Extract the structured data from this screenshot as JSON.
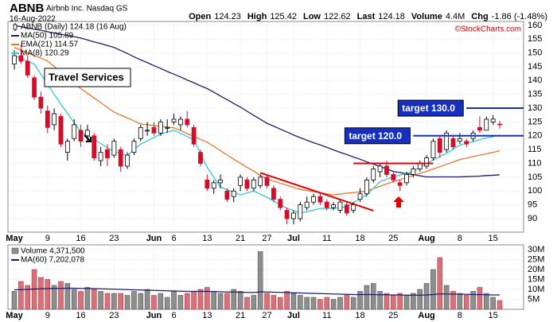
{
  "chart_data": {
    "type": "candlestick",
    "symbol": "ABNB",
    "company": "Airbnb Inc. Nasdaq GS",
    "date": "16-Aug-2022",
    "quote": [
      {
        "label": "Open",
        "value": 124.23
      },
      {
        "label": "High",
        "value": 125.42
      },
      {
        "label": "Low",
        "value": 122.62
      },
      {
        "label": "Last",
        "value": 124.18
      },
      {
        "label": "Volume",
        "value": "4.4M"
      },
      {
        "label": "Chg",
        "value": "-1.86 (-1.48%)"
      }
    ],
    "watermark": "©StockCharts.com",
    "price_legend": "ABNB (Daily) 124.18 (16 Aug)",
    "annotation": "Travel Services",
    "categories": [
      "May",
      null,
      null,
      null,
      null,
      "9",
      null,
      null,
      null,
      null,
      "16",
      null,
      null,
      null,
      null,
      "23",
      null,
      null,
      null,
      null,
      null,
      "Jun",
      null,
      null,
      "6",
      null,
      null,
      null,
      null,
      "13",
      null,
      null,
      null,
      null,
      "21",
      null,
      null,
      null,
      "27",
      null,
      null,
      null,
      "Jul",
      null,
      null,
      null,
      null,
      "11",
      null,
      null,
      null,
      null,
      "18",
      null,
      null,
      null,
      null,
      "25",
      null,
      null,
      null,
      null,
      "Aug",
      null,
      null,
      null,
      null,
      "8",
      null,
      null,
      null,
      null,
      "15",
      null
    ],
    "open": [
      146,
      149,
      147,
      141,
      134,
      129,
      124,
      127,
      114,
      119,
      122,
      120,
      120,
      111,
      115,
      113,
      115,
      109,
      114,
      119,
      122,
      123,
      121,
      123,
      125,
      124,
      126,
      123,
      114,
      104,
      101,
      103,
      100,
      98,
      102,
      104,
      101,
      102,
      105,
      101,
      97,
      93,
      90,
      90,
      94,
      96,
      98,
      96,
      94,
      93,
      95,
      93,
      97,
      99,
      104,
      107,
      109,
      106,
      103,
      103,
      106,
      108,
      109,
      112,
      119,
      115,
      119,
      118,
      118,
      119,
      123,
      122,
      125,
      124.23
    ],
    "high": [
      151,
      153,
      149,
      142,
      136,
      131,
      130,
      128,
      119,
      126,
      124,
      124,
      121,
      116,
      117,
      119,
      116,
      114,
      119,
      124,
      125,
      125,
      126,
      126,
      128,
      127,
      129,
      124,
      115,
      106,
      104,
      106,
      101,
      101,
      106,
      105,
      105,
      106,
      106,
      102,
      98,
      94,
      93,
      96,
      98,
      99,
      99,
      97,
      96,
      97,
      96,
      96,
      101,
      105,
      109,
      110,
      111,
      107,
      104,
      107,
      109,
      111,
      113,
      119,
      120,
      122,
      120,
      121,
      119,
      122,
      127,
      127,
      127.5,
      125.42
    ],
    "low": [
      144,
      146,
      141,
      133,
      128,
      121,
      122,
      116,
      111,
      118,
      116,
      118,
      111,
      109,
      109,
      112,
      107,
      108,
      113,
      118,
      120,
      120,
      120,
      121,
      124,
      122,
      123,
      116,
      109,
      100,
      99,
      101,
      96,
      96,
      100,
      100,
      100,
      101,
      101,
      96,
      93,
      88,
      88,
      89,
      93,
      95,
      95,
      93,
      93,
      92,
      91,
      92,
      96,
      98,
      103,
      105,
      105,
      103,
      100,
      102,
      105,
      107,
      108,
      111,
      112,
      114,
      115,
      117,
      116,
      118,
      121,
      122,
      124,
      122.62
    ],
    "close": [
      149,
      147,
      142,
      134,
      130,
      123,
      128,
      117,
      118,
      124,
      118,
      122,
      112,
      114,
      112,
      118,
      109,
      113,
      118,
      123,
      122,
      121,
      125,
      123,
      126,
      126,
      124,
      117,
      110,
      101,
      103,
      104,
      97,
      100,
      105,
      101,
      104,
      105,
      102,
      97,
      94,
      90,
      92,
      95,
      96,
      98,
      96,
      94,
      95,
      96,
      92,
      95,
      99,
      104,
      108,
      109,
      106,
      104,
      102,
      106,
      108,
      110,
      112,
      118,
      114,
      121,
      116,
      119,
      117,
      121,
      122,
      126,
      126.04,
      124.18
    ],
    "up_color": "#ffffff",
    "down_color": "#d0102a",
    "ylim": [
      85.1,
      161.4
    ],
    "yticks": [
      90,
      95,
      100,
      105,
      110,
      115,
      120,
      125,
      130,
      135,
      140,
      145,
      150,
      155,
      160
    ],
    "grid": true,
    "series": [
      {
        "name": "MA(50) 105.89",
        "color": "#1c1c6e",
        "values": [
          160,
          159.5,
          159.1,
          158.6,
          158.2,
          157.7,
          157.2,
          156.8,
          156.3,
          155.9,
          155.4,
          154.7,
          154.0,
          153.4,
          152.7,
          152.0,
          150.9,
          149.8,
          148.6,
          147.5,
          146.5,
          145.4,
          144.4,
          143.3,
          142.3,
          141.3,
          140.2,
          139.2,
          138.1,
          137.1,
          135.8,
          134.4,
          133.1,
          131.7,
          130.4,
          128.9,
          127.4,
          126.0,
          124.5,
          123.5,
          122.4,
          121.4,
          120.3,
          119.3,
          118.4,
          117.5,
          116.7,
          115.8,
          114.9,
          114.0,
          113.2,
          112.3,
          111.5,
          110.6,
          109.7,
          108.9,
          108.0,
          107.1,
          106.7,
          106.3,
          105.9,
          105.5,
          105.1,
          105.1,
          105.1,
          105.1,
          105.1,
          105.1,
          105.2,
          105.3,
          105.4,
          105.6,
          105.7,
          105.89
        ]
      },
      {
        "name": "EMA(21) 114.57",
        "color": "#e8772e",
        "values": [
          152,
          151,
          150,
          149.1,
          148.1,
          147.1,
          145.1,
          143.1,
          141.1,
          139.1,
          137.1,
          135.4,
          133.7,
          132.0,
          130.3,
          128.6,
          127.5,
          126.5,
          125.4,
          124.3,
          124.0,
          123.7,
          123.5,
          123.2,
          122.9,
          121.9,
          120.8,
          119.8,
          118.7,
          117.7,
          116.2,
          114.6,
          113.1,
          111.5,
          110,
          108.6,
          107.2,
          105.7,
          104.3,
          103.6,
          102.8,
          102.1,
          101.3,
          100.6,
          100.2,
          99.8,
          99.4,
          99.0,
          98.6,
          98.9,
          99.2,
          99.4,
          99.7,
          100,
          100.9,
          101.7,
          102.6,
          103.4,
          104.1,
          104.9,
          105.6,
          106.4,
          107.1,
          108.0,
          108.8,
          109.7,
          110.5,
          111.4,
          111.9,
          112.5,
          113.0,
          113.5,
          114.0,
          114.57
        ]
      },
      {
        "name": "MA(8) 120.29",
        "color": "#33c8dc",
        "values": [
          149,
          148,
          147,
          146,
          142.3,
          138.6,
          135,
          131.4,
          128.1,
          124.7,
          121.4,
          120,
          118.6,
          117.2,
          115.7,
          114.3,
          113.6,
          112.9,
          115,
          117,
          118.2,
          119.4,
          120.6,
          121.3,
          122,
          120.9,
          119.7,
          118.6,
          113.6,
          108.6,
          105,
          101.4,
          100.5,
          99.5,
          98.6,
          99.3,
          100,
          98.9,
          97.7,
          96.4,
          95,
          93.7,
          92.9,
          92,
          92.6,
          93.1,
          93.7,
          93.7,
          93.7,
          94,
          94.3,
          95.7,
          97.2,
          98.6,
          101,
          103.4,
          104.3,
          105.1,
          105.8,
          106.4,
          107.1,
          108.6,
          110,
          111.2,
          112.5,
          113.7,
          115.2,
          116.6,
          117.3,
          117.9,
          118.6,
          119.2,
          119.7,
          120.29
        ]
      }
    ],
    "levels": [
      {
        "label": "target 130.0",
        "value": 130,
        "color": "#1530c0",
        "from": 68
      },
      {
        "label": "target 120.0",
        "value": 120,
        "color": "#1530c0",
        "from": 60
      },
      {
        "value": 110,
        "color": "#e00000",
        "from": 51,
        "to": 63
      }
    ],
    "trendline": {
      "color": "#e00000",
      "x": [
        37,
        54
      ],
      "y": [
        106.6,
        92.9
      ]
    },
    "volume": {
      "name": "Volume 4,371,500",
      "up_color": "#8e8e8e",
      "down_color": "#d9707a",
      "values": [
        9,
        14,
        12,
        20,
        16,
        15,
        12,
        14,
        13,
        10,
        9,
        11,
        10,
        9,
        8,
        8,
        8,
        7,
        9,
        8,
        10,
        7,
        8,
        6,
        9,
        7,
        8,
        9,
        10,
        11,
        9,
        8,
        8,
        10,
        9,
        6,
        7,
        29,
        8,
        7,
        6,
        9,
        8,
        7,
        6,
        6,
        5,
        6,
        5,
        6,
        7,
        6,
        9,
        12,
        13,
        9,
        8,
        7,
        8,
        7,
        8,
        10,
        13,
        20,
        26,
        12,
        9,
        8,
        7,
        9,
        11,
        8,
        6,
        4.37
      ],
      "ylim": [
        0,
        32.4
      ],
      "yticks": [
        {
          "value": 5,
          "label": "5M"
        },
        {
          "value": 10,
          "label": "10M"
        },
        {
          "value": 15,
          "label": "15M"
        },
        {
          "value": 20,
          "label": "20M"
        },
        {
          "value": 25,
          "label": "25M"
        },
        {
          "value": 30,
          "label": "30M"
        }
      ],
      "ma": {
        "name": "MA(60) 7,202,078",
        "color": "#1c1c6e",
        "values": [
          9.8,
          9.9,
          10,
          10.2,
          10.3,
          10.4,
          10.5,
          10.5,
          10.6,
          10.6,
          10.5,
          10.5,
          10.4,
          10.3,
          10.2,
          10.1,
          10,
          9.9,
          9.8,
          9.7,
          9.6,
          9.5,
          9.4,
          9.3,
          9.2,
          9.1,
          9.0,
          9.0,
          9.0,
          9.0,
          8.9,
          8.8,
          8.7,
          8.7,
          8.6,
          8.5,
          8.4,
          8.8,
          8.7,
          8.6,
          8.5,
          8.4,
          8.3,
          8.2,
          8.1,
          8.0,
          7.9,
          7.8,
          7.7,
          7.6,
          7.5,
          7.4,
          7.4,
          7.4,
          7.4,
          7.3,
          7.3,
          7.2,
          7.2,
          7.1,
          7.1,
          7.1,
          7.2,
          7.4,
          7.7,
          7.7,
          7.6,
          7.6,
          7.5,
          7.4,
          7.4,
          7.3,
          7.2,
          7.2
        ]
      }
    }
  }
}
